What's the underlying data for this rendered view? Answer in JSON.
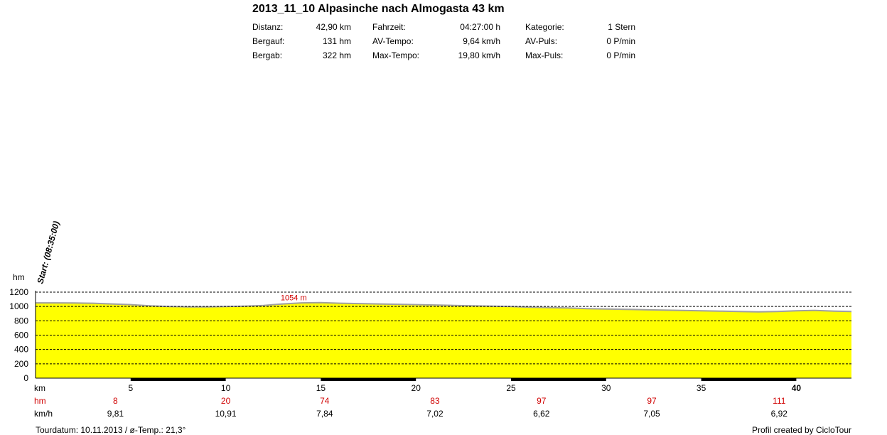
{
  "title": "2013_11_10 Alpasinche nach Almogasta 43 km",
  "stats": [
    {
      "label": "Distanz:",
      "value": "42,90 km"
    },
    {
      "label": "Bergauf:",
      "value": "131 hm"
    },
    {
      "label": "Bergab:",
      "value": "322 hm"
    },
    {
      "label": "Fahrzeit:",
      "value": "04:27:00 h"
    },
    {
      "label": "AV-Tempo:",
      "value": "9,64 km/h"
    },
    {
      "label": "Max-Tempo:",
      "value": "19,80 km/h"
    },
    {
      "label": "Kategorie:",
      "value": "1 Stern"
    },
    {
      "label": "AV-Puls:",
      "value": "0 P/min"
    },
    {
      "label": "Max-Puls:",
      "value": "0 P/min"
    }
  ],
  "chart_data": {
    "type": "area",
    "ylabel": "hm",
    "xlabel": "km",
    "ylim": [
      0,
      1200
    ],
    "xlim": [
      0,
      42.9
    ],
    "y_ticks": [
      0,
      200,
      400,
      600,
      800,
      1000,
      1200
    ],
    "x_ticks": [
      5,
      10,
      15,
      20,
      25,
      30,
      35,
      40
    ],
    "x_tick_labels": [
      "5",
      "10",
      "15",
      "20",
      "25",
      "30",
      "35",
      "40"
    ],
    "grid": true,
    "fill_color": "#ffff00",
    "line_color": "#a0a0a0",
    "start_annotation": "Start: (08:35:00)",
    "max_annotation": {
      "text": "1054 m",
      "x": 13.8,
      "y": 1054
    },
    "series": [
      {
        "x": [
          0,
          1,
          2,
          3,
          4,
          5,
          6,
          7,
          8,
          9,
          10,
          11,
          12,
          13,
          14,
          15,
          16,
          17,
          18,
          19,
          20,
          21,
          22,
          23,
          24,
          25,
          26,
          27,
          28,
          29,
          30,
          31,
          32,
          33,
          34,
          35,
          36,
          37,
          38,
          39,
          40,
          41,
          42,
          42.9
        ],
        "values": [
          1050,
          1050,
          1048,
          1045,
          1035,
          1025,
          1010,
          1000,
          995,
          995,
          1000,
          1005,
          1015,
          1035,
          1050,
          1054,
          1045,
          1040,
          1035,
          1030,
          1025,
          1020,
          1015,
          1010,
          1005,
          1000,
          990,
          985,
          980,
          970,
          965,
          960,
          955,
          950,
          945,
          940,
          935,
          930,
          925,
          930,
          940,
          945,
          935,
          930
        ]
      }
    ],
    "rows": [
      {
        "label": "hm",
        "color": "#d00000",
        "values": [
          "8",
          "20",
          "74",
          "83",
          "97",
          "97",
          "111"
        ]
      },
      {
        "label": "km/h",
        "color": "#000000",
        "values": [
          "9,81",
          "10,91",
          "7,84",
          "7,02",
          "6,62",
          "7,05",
          "6,92"
        ]
      }
    ]
  },
  "footer": {
    "left": "Tourdatum: 10.11.2013  /  ø-Temp.: 21,3°",
    "right": "Profil created by CicloTour"
  }
}
